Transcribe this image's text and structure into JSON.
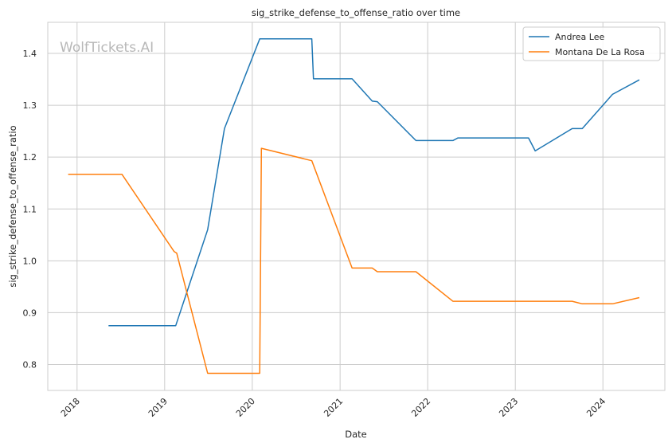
{
  "chart_data": {
    "type": "line",
    "title": "sig_strike_defense_to_offense_ratio over time",
    "xlabel": "Date",
    "ylabel": "sig_strike_defense_to_offense_ratio",
    "xlim": [
      "2017-09-01",
      "2024-09-15"
    ],
    "ylim": [
      0.75,
      1.46
    ],
    "x_ticks": [
      "2018-01-01",
      "2019-01-01",
      "2020-01-01",
      "2021-01-01",
      "2022-01-01",
      "2023-01-01",
      "2024-01-01"
    ],
    "x_tick_labels": [
      "2018",
      "2019",
      "2020",
      "2021",
      "2022",
      "2023",
      "2024"
    ],
    "y_ticks": [
      0.8,
      0.9,
      1.0,
      1.1,
      1.2,
      1.3,
      1.4
    ],
    "y_tick_labels": [
      "0.8",
      "0.9",
      "1.0",
      "1.1",
      "1.2",
      "1.3",
      "1.4"
    ],
    "grid": true,
    "legend_position": "top-right",
    "watermark": "WolfTickets.AI",
    "series": [
      {
        "name": "Andrea Lee",
        "color": "#1f77b4",
        "points": [
          [
            "2018-05-12",
            0.875
          ],
          [
            "2019-02-16",
            0.875
          ],
          [
            "2019-06-29",
            1.06
          ],
          [
            "2019-09-07",
            1.255
          ],
          [
            "2020-02-01",
            1.428
          ],
          [
            "2020-09-05",
            1.428
          ],
          [
            "2020-09-12",
            1.351
          ],
          [
            "2021-02-20",
            1.351
          ],
          [
            "2021-05-15",
            1.308
          ],
          [
            "2021-06-05",
            1.307
          ],
          [
            "2021-11-13",
            1.232
          ],
          [
            "2022-04-16",
            1.232
          ],
          [
            "2022-05-07",
            1.237
          ],
          [
            "2023-02-25",
            1.237
          ],
          [
            "2023-03-25",
            1.212
          ],
          [
            "2023-08-26",
            1.255
          ],
          [
            "2023-10-07",
            1.255
          ],
          [
            "2024-02-10",
            1.321
          ],
          [
            "2024-06-01",
            1.349
          ]
        ]
      },
      {
        "name": "Montana De La Rosa",
        "color": "#ff7f0e",
        "points": [
          [
            "2017-11-25",
            1.167
          ],
          [
            "2018-07-07",
            1.167
          ],
          [
            "2019-02-09",
            1.018
          ],
          [
            "2019-02-20",
            1.015
          ],
          [
            "2019-06-29",
            0.783
          ],
          [
            "2020-02-01",
            0.783
          ],
          [
            "2020-02-08",
            1.217
          ],
          [
            "2020-09-05",
            1.193
          ],
          [
            "2021-02-20",
            0.986
          ],
          [
            "2021-05-15",
            0.986
          ],
          [
            "2021-06-05",
            0.979
          ],
          [
            "2021-11-13",
            0.979
          ],
          [
            "2022-04-16",
            0.922
          ],
          [
            "2023-08-26",
            0.922
          ],
          [
            "2023-10-07",
            0.917
          ],
          [
            "2024-02-10",
            0.917
          ],
          [
            "2024-06-01",
            0.929
          ]
        ]
      }
    ]
  }
}
